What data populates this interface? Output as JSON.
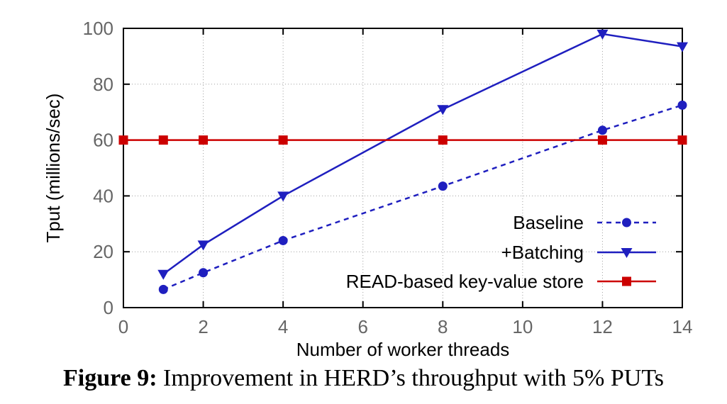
{
  "chart_data": {
    "type": "line",
    "xlabel": "Number of worker threads",
    "ylabel": "Tput (millions/sec)",
    "xlim": [
      0,
      14
    ],
    "ylim": [
      0,
      100
    ],
    "x_ticks": [
      0,
      2,
      4,
      6,
      8,
      10,
      12,
      14
    ],
    "y_ticks": [
      0,
      20,
      40,
      60,
      80,
      100
    ],
    "grid": true,
    "legend_position": "bottom-right",
    "series": [
      {
        "name": "Baseline",
        "color": "#1f1fbf",
        "line_style": "dashed",
        "marker": "circle",
        "x": [
          1,
          2,
          4,
          8,
          12,
          14
        ],
        "y": [
          6.5,
          12.5,
          24,
          43.5,
          63.5,
          72.5
        ]
      },
      {
        "name": "+Batching",
        "color": "#1f1fbf",
        "line_style": "solid",
        "marker": "triangle-down",
        "x": [
          1,
          2,
          4,
          8,
          12,
          14
        ],
        "y": [
          12,
          22.5,
          40,
          71,
          98,
          93.5
        ]
      },
      {
        "name": "READ-based key-value store",
        "color": "#cc0000",
        "line_style": "solid",
        "marker": "square",
        "x": [
          0,
          1,
          2,
          4,
          8,
          12,
          14
        ],
        "y": [
          60,
          60,
          60,
          60,
          60,
          60,
          60
        ]
      }
    ]
  },
  "caption": {
    "number": "Figure 9:",
    "text": "Improvement in HERD’s throughput with 5% PUTs"
  }
}
